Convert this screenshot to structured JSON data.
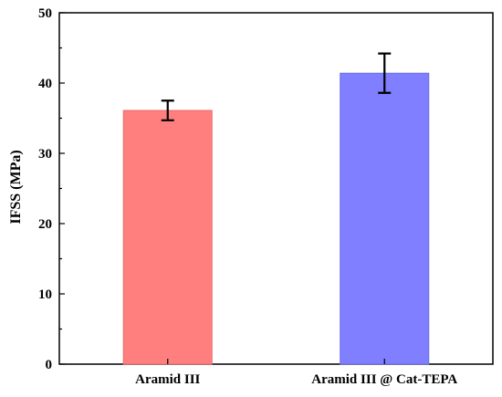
{
  "chart_data": {
    "type": "bar",
    "title": "",
    "xlabel": "",
    "ylabel": "IFSS (MPa)",
    "ylim": [
      0,
      50
    ],
    "yticks": [
      "0",
      "10",
      "20",
      "30",
      "40",
      "50"
    ],
    "categories": [
      "Aramid III",
      "Aramid III @ Cat-TEPA"
    ],
    "values": [
      36.1,
      41.4
    ],
    "errors": [
      1.4,
      2.8
    ],
    "colors": [
      "#ff7f7f",
      "#7f7fff"
    ],
    "bar_edge_colors": [
      "#e86a6a",
      "#6a6ae8"
    ],
    "grid": false,
    "legend": "none"
  }
}
